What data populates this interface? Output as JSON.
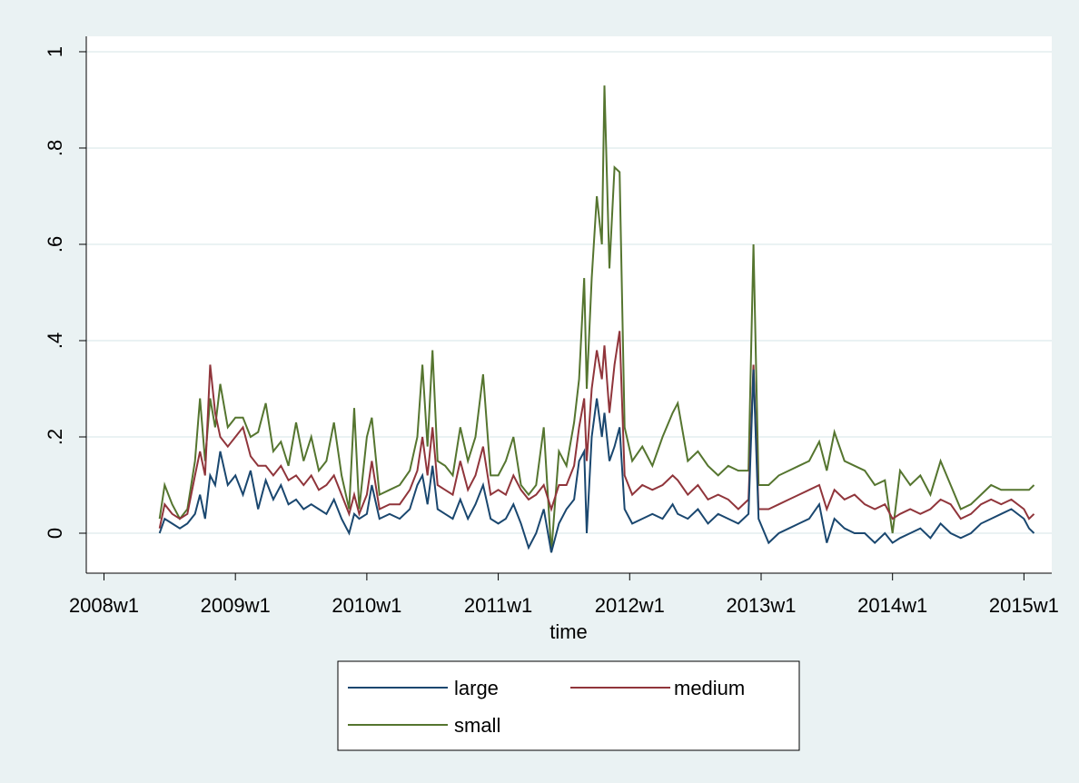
{
  "chart_data": {
    "type": "line",
    "x_label": "time",
    "x": [
      "2008w23",
      "2008w25",
      "2008w28",
      "2008w31",
      "2008w34",
      "2008w37",
      "2008w39",
      "2008w41",
      "2008w43",
      "2008w45",
      "2008w47",
      "2008w50",
      "2009w1",
      "2009w4",
      "2009w7",
      "2009w10",
      "2009w13",
      "2009w16",
      "2009w19",
      "2009w22",
      "2009w25",
      "2009w28",
      "2009w31",
      "2009w34",
      "2009w37",
      "2009w40",
      "2009w43",
      "2009w46",
      "2009w48",
      "2009w50",
      "2010w1",
      "2010w3",
      "2010w6",
      "2010w10",
      "2010w14",
      "2010w18",
      "2010w21",
      "2010w23",
      "2010w25",
      "2010w27",
      "2010w29",
      "2010w32",
      "2010w35",
      "2010w38",
      "2010w41",
      "2010w44",
      "2010w47",
      "2010w50",
      "2011w1",
      "2011w4",
      "2011w7",
      "2011w10",
      "2011w13",
      "2011w16",
      "2011w19",
      "2011w22",
      "2011w25",
      "2011w28",
      "2011w31",
      "2011w33",
      "2011w35",
      "2011w36",
      "2011w38",
      "2011w40",
      "2011w42",
      "2011w43",
      "2011w45",
      "2011w47",
      "2011w49",
      "2011w51",
      "2012w2",
      "2012w6",
      "2012w10",
      "2012w14",
      "2012w18",
      "2012w20",
      "2012w24",
      "2012w28",
      "2012w32",
      "2012w36",
      "2012w40",
      "2012w44",
      "2012w48",
      "2012w50",
      "2012w52",
      "2013w4",
      "2013w8",
      "2013w12",
      "2013w16",
      "2013w20",
      "2013w24",
      "2013w27",
      "2013w30",
      "2013w34",
      "2013w38",
      "2013w42",
      "2013w46",
      "2013w50",
      "2014w1",
      "2014w4",
      "2014w8",
      "2014w12",
      "2014w16",
      "2014w20",
      "2014w24",
      "2014w28",
      "2014w32",
      "2014w36",
      "2014w40",
      "2014w44",
      "2014w48",
      "2015w1",
      "2015w3",
      "2015w5"
    ],
    "series": [
      {
        "name": "large",
        "color": "#1a476f",
        "values": [
          0.0,
          0.03,
          0.02,
          0.01,
          0.02,
          0.04,
          0.08,
          0.03,
          0.12,
          0.1,
          0.17,
          0.1,
          0.12,
          0.08,
          0.13,
          0.05,
          0.11,
          0.07,
          0.1,
          0.06,
          0.07,
          0.05,
          0.06,
          0.05,
          0.04,
          0.07,
          0.03,
          0.0,
          0.04,
          0.03,
          0.04,
          0.1,
          0.03,
          0.04,
          0.03,
          0.05,
          0.1,
          0.12,
          0.06,
          0.14,
          0.05,
          0.04,
          0.03,
          0.07,
          0.03,
          0.06,
          0.1,
          0.03,
          0.02,
          0.03,
          0.06,
          0.02,
          -0.03,
          0.0,
          0.05,
          -0.04,
          0.02,
          0.05,
          0.07,
          0.15,
          0.17,
          0.0,
          0.2,
          0.28,
          0.2,
          0.25,
          0.15,
          0.18,
          0.22,
          0.05,
          0.02,
          0.03,
          0.04,
          0.03,
          0.06,
          0.04,
          0.03,
          0.05,
          0.02,
          0.04,
          0.03,
          0.02,
          0.04,
          0.34,
          0.03,
          -0.02,
          0.0,
          0.01,
          0.02,
          0.03,
          0.06,
          -0.02,
          0.03,
          0.01,
          0.0,
          0.0,
          -0.02,
          0.0,
          -0.02,
          -0.01,
          0.0,
          0.01,
          -0.01,
          0.02,
          0.0,
          -0.01,
          0.0,
          0.02,
          0.03,
          0.04,
          0.05,
          0.03,
          0.01,
          0.0
        ]
      },
      {
        "name": "medium",
        "color": "#90353b",
        "values": [
          0.01,
          0.06,
          0.04,
          0.03,
          0.04,
          0.12,
          0.17,
          0.12,
          0.35,
          0.25,
          0.2,
          0.18,
          0.2,
          0.22,
          0.16,
          0.14,
          0.14,
          0.12,
          0.14,
          0.11,
          0.12,
          0.1,
          0.12,
          0.09,
          0.1,
          0.12,
          0.08,
          0.04,
          0.08,
          0.04,
          0.08,
          0.15,
          0.05,
          0.06,
          0.06,
          0.09,
          0.13,
          0.2,
          0.12,
          0.22,
          0.1,
          0.09,
          0.08,
          0.15,
          0.09,
          0.12,
          0.18,
          0.08,
          0.09,
          0.08,
          0.12,
          0.09,
          0.07,
          0.08,
          0.1,
          0.05,
          0.1,
          0.1,
          0.14,
          0.22,
          0.28,
          0.15,
          0.3,
          0.38,
          0.32,
          0.39,
          0.25,
          0.35,
          0.42,
          0.12,
          0.08,
          0.1,
          0.09,
          0.1,
          0.12,
          0.11,
          0.08,
          0.1,
          0.07,
          0.08,
          0.07,
          0.05,
          0.07,
          0.35,
          0.05,
          0.05,
          0.06,
          0.07,
          0.08,
          0.09,
          0.1,
          0.05,
          0.09,
          0.07,
          0.08,
          0.06,
          0.05,
          0.06,
          0.03,
          0.04,
          0.05,
          0.04,
          0.05,
          0.07,
          0.06,
          0.03,
          0.04,
          0.06,
          0.07,
          0.06,
          0.07,
          0.05,
          0.03,
          0.04
        ]
      },
      {
        "name": "small",
        "color": "#55752f",
        "values": [
          0.03,
          0.1,
          0.06,
          0.03,
          0.05,
          0.15,
          0.28,
          0.15,
          0.28,
          0.22,
          0.31,
          0.22,
          0.24,
          0.24,
          0.2,
          0.21,
          0.27,
          0.17,
          0.19,
          0.14,
          0.23,
          0.15,
          0.2,
          0.13,
          0.15,
          0.23,
          0.12,
          0.05,
          0.26,
          0.05,
          0.2,
          0.24,
          0.08,
          0.09,
          0.1,
          0.13,
          0.2,
          0.35,
          0.18,
          0.38,
          0.15,
          0.14,
          0.12,
          0.22,
          0.15,
          0.2,
          0.33,
          0.12,
          0.12,
          0.15,
          0.2,
          0.1,
          0.08,
          0.1,
          0.22,
          -0.04,
          0.17,
          0.14,
          0.23,
          0.32,
          0.53,
          0.3,
          0.53,
          0.7,
          0.6,
          0.93,
          0.55,
          0.76,
          0.75,
          0.22,
          0.15,
          0.18,
          0.14,
          0.2,
          0.25,
          0.27,
          0.15,
          0.17,
          0.14,
          0.12,
          0.14,
          0.13,
          0.13,
          0.6,
          0.1,
          0.1,
          0.12,
          0.13,
          0.14,
          0.15,
          0.19,
          0.13,
          0.21,
          0.15,
          0.14,
          0.13,
          0.1,
          0.11,
          0.0,
          0.13,
          0.1,
          0.12,
          0.08,
          0.15,
          0.1,
          0.05,
          0.06,
          0.08,
          0.1,
          0.09,
          0.09,
          0.09,
          0.09,
          0.1
        ]
      }
    ],
    "xlim": [
      "2007w46",
      "2015w12"
    ],
    "xticks": [
      "2008w1",
      "2009w1",
      "2010w1",
      "2011w1",
      "2012w1",
      "2013w1",
      "2014w1",
      "2015w1"
    ],
    "ylim": [
      -0.083,
      1.032
    ],
    "yticks": [
      0,
      {
        "value": 0.2,
        "label": ".2"
      },
      {
        "value": 0.4,
        "label": ".4"
      },
      {
        "value": 0.6,
        "label": ".6"
      },
      {
        "value": 0.8,
        "label": ".8"
      },
      1
    ],
    "grid": true,
    "legend": "bottom"
  }
}
